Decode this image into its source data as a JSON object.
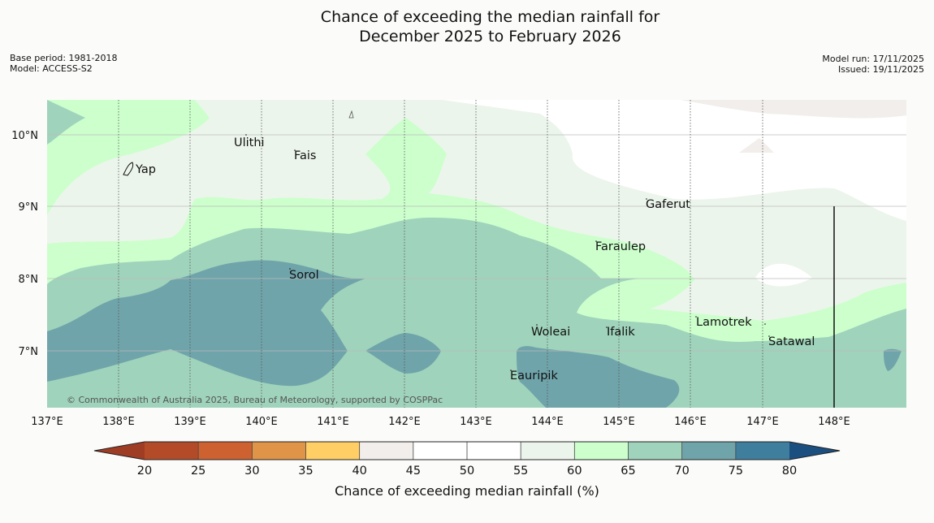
{
  "title": {
    "line1": "Chance of exceeding the median rainfall for",
    "line2": "December 2025 to February 2026"
  },
  "meta": {
    "base_period": "Base period: 1981-2018",
    "model": "Model: ACCESS-S2",
    "model_run": "Model run: 17/11/2025",
    "issued": "Issued: 19/11/2025"
  },
  "map": {
    "lon_labels": [
      "137°E",
      "138°E",
      "139°E",
      "140°E",
      "141°E",
      "142°E",
      "143°E",
      "144°E",
      "145°E",
      "146°E",
      "147°E",
      "148°E"
    ],
    "lat_labels": [
      "10°N",
      "9°N",
      "8°N",
      "7°N"
    ],
    "places": {
      "ulithi": "Ulithi",
      "fais": "Fais",
      "yap": "Yap",
      "gaferut": "Gaferut",
      "faraulep": "Faraulep",
      "sorol": "Sorol",
      "lamotrek": "Lamotrek",
      "woleai": "Woleai",
      "ifalik": "Ifalik",
      "satawal": "Satawal",
      "eauripik": "Eauripik"
    },
    "copyright": "© Commonwealth of Australia 2025, Bureau of Meteorology, supported by COSPPac"
  },
  "legend": {
    "title": "Chance of exceeding median rainfall (%)",
    "ticks": [
      "20",
      "25",
      "30",
      "35",
      "40",
      "45",
      "50",
      "55",
      "60",
      "65",
      "70",
      "75",
      "80"
    ],
    "colors": [
      "#b34b29",
      "#cd6230",
      "#e09448",
      "#ffcf66",
      "#f1eeeb",
      "#ffffff",
      "#ffffff",
      "#ecf5ec",
      "#ccffcc",
      "#9fd3bb",
      "#6fa4aa",
      "#407e9e"
    ],
    "under_color": "#9f3c24",
    "over_color": "#1b4f80"
  }
}
